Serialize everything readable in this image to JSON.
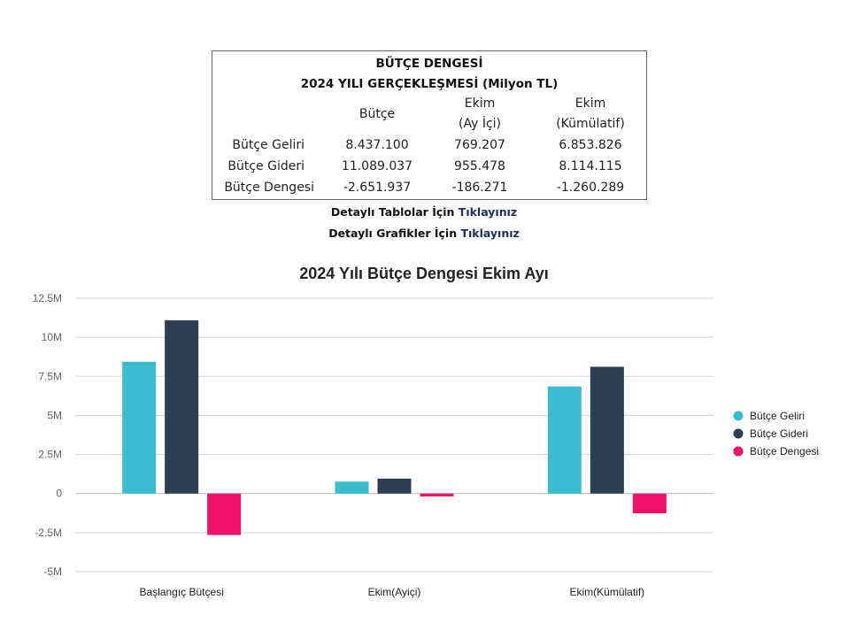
{
  "summary": {
    "title_line1": "BÜTÇE DENGESİ",
    "title_line2": "2024 YILI GERÇEKLEŞMESİ (Milyon TL)",
    "col_headers": {
      "butce": "Bütçe",
      "ekim_ayici_1": "Ekim",
      "ekim_ayici_2": "(Ay İçi)",
      "ekim_kum_1": "Ekim",
      "ekim_kum_2": "(Kümülatif)"
    },
    "rows": [
      {
        "label": "Bütçe Geliri",
        "butce": "8.437.100",
        "ayici": "769.207",
        "kumulatif": "6.853.826"
      },
      {
        "label": "Bütçe Gideri",
        "butce": "11.089.037",
        "ayici": "955.478",
        "kumulatif": "8.114.115"
      },
      {
        "label": "Bütçe Dengesi",
        "butce": "-2.651.937",
        "ayici": "-186.271",
        "kumulatif": "-1.260.289"
      }
    ]
  },
  "links": {
    "tables_prefix": "Detaylı Tablolar İçin ",
    "tables_link": "Tıklayınız",
    "charts_prefix": "Detaylı Grafikler İçin ",
    "charts_link": "Tıklayınız"
  },
  "chart_data": {
    "type": "bar",
    "title": "2024 Yılı Bütçe Dengesi Ekim Ayı",
    "categories": [
      "Başlangıç Bütçesi",
      "Ekim(Ayiçi)",
      "Ekim(Kümülatif)"
    ],
    "series": [
      {
        "name": "Bütçe Geliri",
        "color": "#3bbccf",
        "values": [
          8437100,
          769207,
          6853826
        ]
      },
      {
        "name": "Bütçe Gideri",
        "color": "#2c3e50",
        "values": [
          11089037,
          955478,
          8114115
        ]
      },
      {
        "name": "Bütçe Dengesi",
        "color": "#f0136b",
        "values": [
          -2651937,
          -186271,
          -1260289
        ]
      }
    ],
    "ylim": [
      -5000000,
      12500000
    ],
    "yticks": [
      12500000,
      10000000,
      7500000,
      5000000,
      2500000,
      0,
      -2500000,
      -5000000
    ],
    "ytick_labels": [
      "12.5M",
      "10M",
      "7.5M",
      "5M",
      "2.5M",
      "0",
      "-2.5M",
      "-5M"
    ],
    "grid": true,
    "legend_position": "right"
  }
}
